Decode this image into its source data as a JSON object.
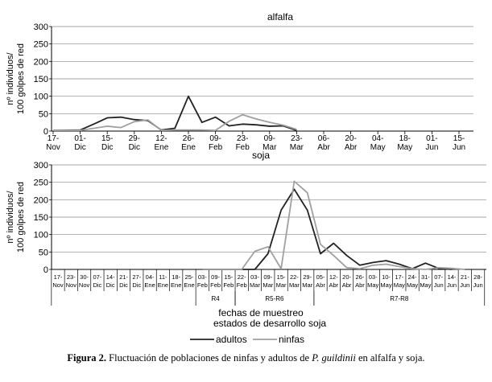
{
  "chart_data": [
    {
      "type": "line",
      "title": "alfalfa",
      "ylabel": "nº individuos/\n100 golpes de red",
      "ylim": [
        0,
        300
      ],
      "yticks": [
        0,
        50,
        100,
        150,
        200,
        250,
        300
      ],
      "grid": true,
      "categories": [
        "17-Nov",
        "01-Dic",
        "15-Dic",
        "29-Dic",
        "12-Ene",
        "26-Ene",
        "09-Feb",
        "23-Feb",
        "09-Mar",
        "23-Mar",
        "06-Abr",
        "20-Abr",
        "04-May",
        "18-May",
        "01-Jun",
        "15-Jun"
      ],
      "series": [
        {
          "name": "adultos",
          "color": "#222222",
          "x": [
            0,
            1,
            1.5,
            2,
            2.5,
            3,
            3.5,
            4,
            4.5,
            5,
            5.5,
            6,
            6.5,
            7,
            7.5,
            8,
            8.5,
            9
          ],
          "y": [
            2,
            3,
            20,
            38,
            40,
            33,
            30,
            3,
            8,
            100,
            25,
            40,
            15,
            20,
            18,
            14,
            15,
            2
          ]
        },
        {
          "name": "ninfas",
          "color": "#a0a0a0",
          "x": [
            0,
            1,
            2,
            2.5,
            3,
            3.5,
            4,
            4.5,
            5,
            5.5,
            6,
            6.5,
            7,
            7.5,
            8,
            8.5,
            9
          ],
          "y": [
            2,
            2,
            14,
            10,
            27,
            32,
            2,
            3,
            3,
            3,
            2,
            28,
            47,
            35,
            25,
            17,
            5
          ]
        }
      ]
    },
    {
      "type": "line",
      "title": "soja",
      "ylabel": "nº individuos/\n100 golpes de red",
      "xlabel": "fechas de muestreo",
      "stage_axis_label": "estados de desarrollo soja",
      "ylim": [
        0,
        300
      ],
      "yticks": [
        0,
        50,
        100,
        150,
        200,
        250,
        300
      ],
      "grid": true,
      "categories": [
        [
          "17-",
          "Nov"
        ],
        [
          "23-",
          "Nov"
        ],
        [
          "30-",
          "Nov"
        ],
        [
          "07-",
          "Dic"
        ],
        [
          "14-",
          "Dic"
        ],
        [
          "21-",
          "Dic"
        ],
        [
          "27-",
          "Dic"
        ],
        [
          "04-",
          "Ene"
        ],
        [
          "11-",
          "Ene"
        ],
        [
          "18-",
          "Ene"
        ],
        [
          "25-",
          "Ene"
        ],
        [
          "03-",
          "Feb"
        ],
        [
          "09-",
          "Feb"
        ],
        [
          "15-",
          "Feb"
        ],
        [
          "22-",
          "Feb"
        ],
        [
          "03-",
          "Mar"
        ],
        [
          "09-",
          "Mar"
        ],
        [
          "15-",
          "Mar"
        ],
        [
          "22-",
          "Mar"
        ],
        [
          "29-",
          "Mar"
        ],
        [
          "05-",
          "Abr"
        ],
        [
          "12-",
          "Abr"
        ],
        [
          "20-",
          "Abr"
        ],
        [
          "26-",
          "Abr"
        ],
        [
          "03-",
          "May"
        ],
        [
          "10-",
          "May"
        ],
        [
          "17-",
          "May"
        ],
        [
          "24-",
          "May"
        ],
        [
          "31-",
          "May"
        ],
        [
          "07-",
          "Jun"
        ],
        [
          "14-",
          "Jun"
        ],
        [
          "21-",
          "Jun"
        ],
        [
          "28-",
          "Jun"
        ]
      ],
      "stages": [
        {
          "label": "R4",
          "from": 11,
          "to": 13
        },
        {
          "label": "R5-R6",
          "from": 14,
          "to": 19
        },
        {
          "label": "R7-R8",
          "from": 20,
          "to": 32
        }
      ],
      "series": [
        {
          "name": "adultos",
          "color": "#222222",
          "x": [
            11,
            12,
            13,
            14,
            15,
            16,
            17,
            18,
            19,
            20,
            21,
            22,
            23,
            24,
            25,
            26,
            27,
            28,
            29,
            30
          ],
          "y": [
            0,
            0,
            0,
            0,
            0,
            45,
            170,
            230,
            170,
            45,
            75,
            40,
            12,
            20,
            25,
            15,
            2,
            18,
            3,
            0
          ]
        },
        {
          "name": "ninfas",
          "color": "#a0a0a0",
          "x": [
            11,
            12,
            13,
            14,
            15,
            16,
            17,
            18,
            19,
            20,
            21,
            22,
            23,
            24,
            25,
            26,
            27,
            28,
            29,
            30,
            31
          ],
          "y": [
            0,
            0,
            0,
            0,
            52,
            65,
            2,
            253,
            220,
            72,
            40,
            5,
            2,
            12,
            15,
            8,
            2,
            0,
            5,
            3,
            0
          ]
        }
      ]
    }
  ],
  "legend": {
    "adultos": "adultos",
    "ninfas": "ninfas"
  },
  "caption": {
    "prefix": "Figura 2.",
    "text_before": " Fluctuación de poblaciones de ninfas y adultos de ",
    "species": "P. guildinii",
    "text_after": " en alfalfa y soja."
  }
}
